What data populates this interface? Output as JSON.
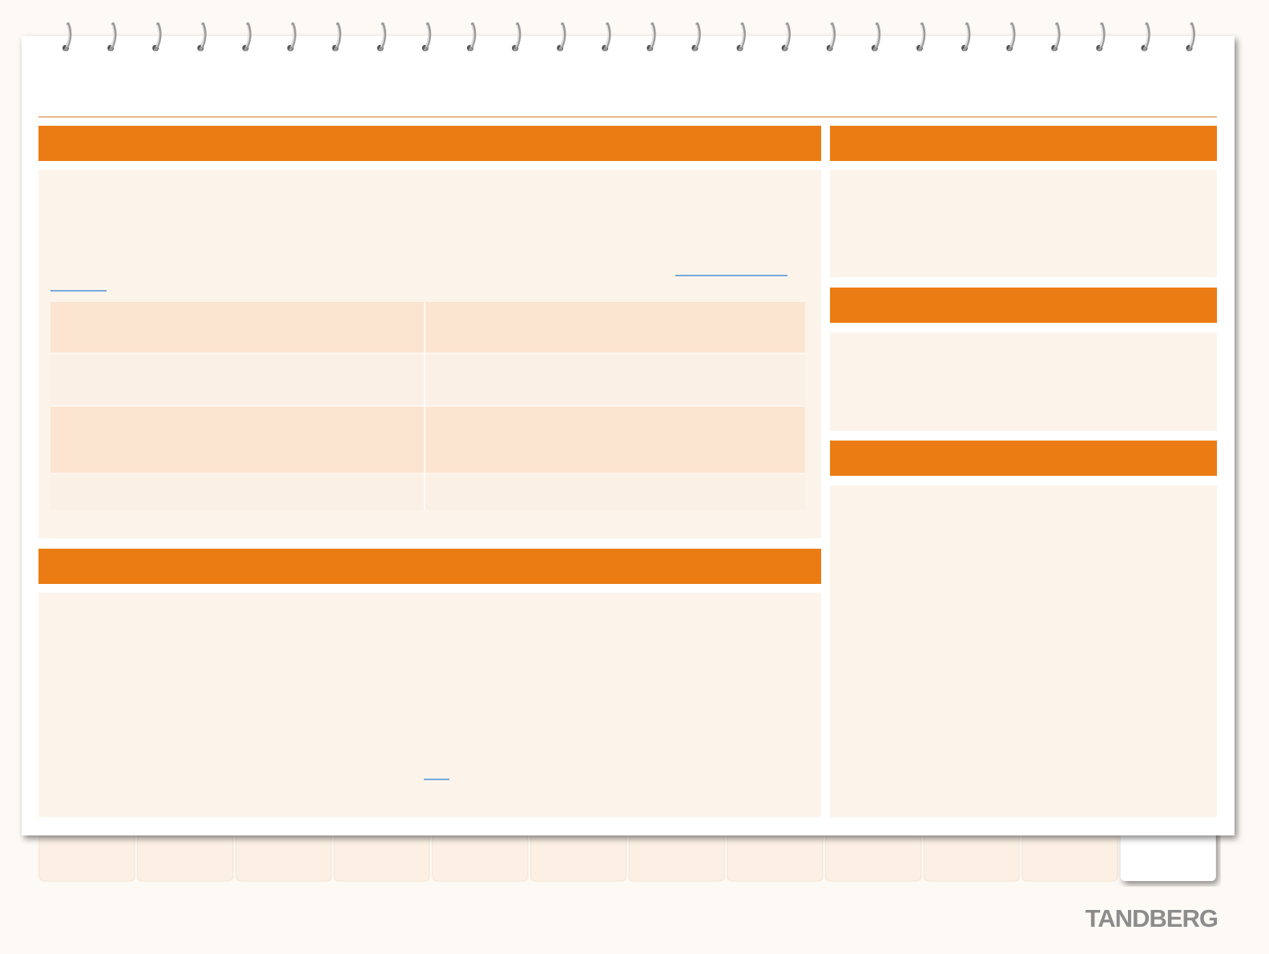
{
  "logo": "TANDBERG"
}
